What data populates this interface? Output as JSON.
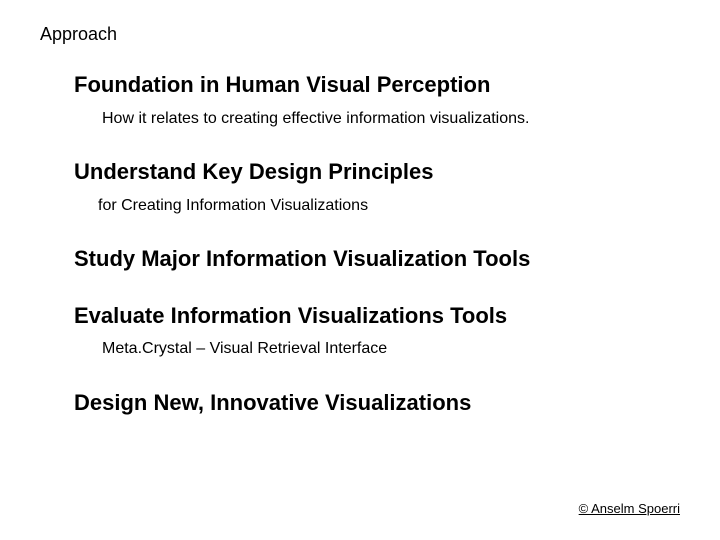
{
  "slide": {
    "title": "Approach",
    "sections": [
      {
        "heading": "Foundation in Human Visual Perception",
        "sub": "How it relates to creating effective information visualizations."
      },
      {
        "heading": "Understand Key Design Principles",
        "sub": "for Creating Information Visualizations"
      },
      {
        "heading": "Study Major Information Visualization Tools",
        "sub": ""
      },
      {
        "heading": "Evaluate Information Visualizations Tools",
        "sub": "Meta.Crystal – Visual Retrieval Interface"
      },
      {
        "heading": "Design New, Innovative Visualizations",
        "sub": ""
      }
    ],
    "footer": "© Anselm Spoerri"
  },
  "style": {
    "background_color": "#ffffff",
    "text_color": "#000000",
    "title_fontsize": 18,
    "heading_fontsize": 22,
    "sub_fontsize": 16,
    "footer_fontsize": 13,
    "font_family": "Verdana"
  }
}
